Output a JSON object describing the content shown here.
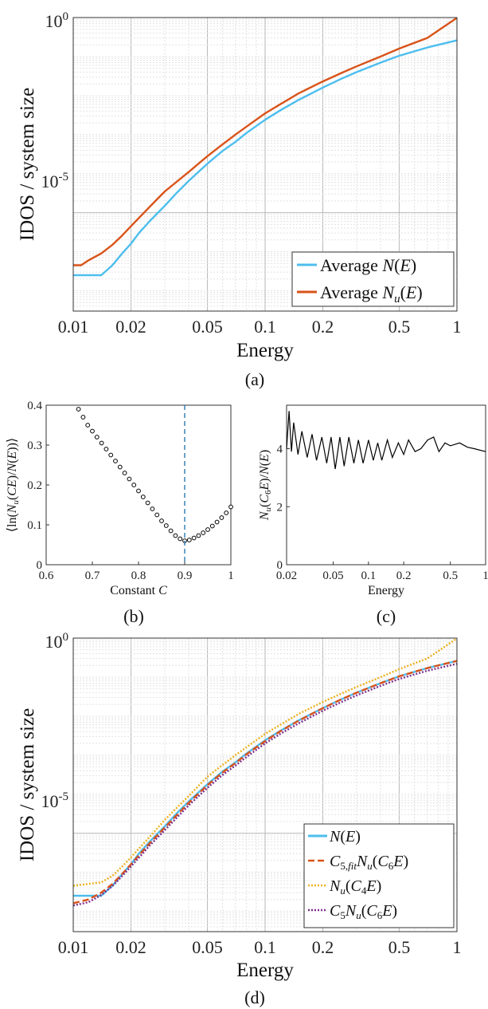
{
  "colors": {
    "blue": "#4DBEEE",
    "red": "#D95319",
    "yellow": "#EDB120",
    "purple": "#7E2F8E",
    "dashed_vline": "#2a7ab0"
  },
  "chart_data": [
    {
      "id": "a",
      "type": "line",
      "caption": "(a)",
      "xlabel": "Energy",
      "ylabel": "IDOS / system size",
      "xscale": "log",
      "yscale": "log",
      "xlim": [
        0.01,
        1
      ],
      "ylim": [
        3e-08,
        1
      ],
      "x_ticks": [
        "0.01",
        "0.02",
        "0.05",
        "0.1",
        "0.2",
        "0.5",
        "1"
      ],
      "y_ticks": [
        {
          "base": "10",
          "exp": "-5"
        },
        {
          "base": "10",
          "exp": "0"
        }
      ],
      "grid": true,
      "legend_position": "bottom-right",
      "series": [
        {
          "name": "Average N(E)",
          "color": "#4DBEEE",
          "x": [
            0.01,
            0.014,
            0.016,
            0.018,
            0.02,
            0.022,
            0.025,
            0.03,
            0.035,
            0.04,
            0.05,
            0.06,
            0.07,
            0.08,
            0.1,
            0.12,
            0.15,
            0.2,
            0.25,
            0.3,
            0.4,
            0.5,
            0.7,
            1.0
          ],
          "y": [
            2.5e-07,
            2.5e-07,
            4.5e-07,
            9e-07,
            1.6e-06,
            3e-06,
            6e-06,
            1.5e-05,
            3.4e-05,
            6.5e-05,
            0.00018,
            0.00038,
            0.00065,
            0.0011,
            0.0024,
            0.0042,
            0.0078,
            0.016,
            0.027,
            0.04,
            0.07,
            0.105,
            0.17,
            0.26
          ]
        },
        {
          "name": "Average N_u(E)",
          "color": "#D95319",
          "x": [
            0.01,
            0.011,
            0.012,
            0.014,
            0.016,
            0.018,
            0.02,
            0.025,
            0.03,
            0.04,
            0.05,
            0.06,
            0.07,
            0.08,
            0.1,
            0.12,
            0.15,
            0.2,
            0.25,
            0.3,
            0.4,
            0.5,
            0.7,
            1.0
          ],
          "y": [
            4.5e-07,
            4.5e-07,
            6e-07,
            9e-07,
            1.5e-06,
            2.6e-06,
            4.5e-06,
            1.4e-05,
            3.5e-05,
            0.00011,
            0.00028,
            0.00056,
            0.001,
            0.0016,
            0.0035,
            0.006,
            0.0115,
            0.023,
            0.038,
            0.056,
            0.1,
            0.16,
            0.3,
            0.98
          ]
        }
      ],
      "legend": [
        {
          "text": "Average ",
          "math": "N(E)",
          "color": "#4DBEEE",
          "style": "solid"
        },
        {
          "text": "Average ",
          "math": "N_u(E)",
          "color": "#D95319",
          "style": "solid"
        }
      ]
    },
    {
      "id": "b",
      "type": "scatter",
      "caption": "(b)",
      "xlabel": "Constant C",
      "ylabel": "⟨ln(N_u(CE)/N(E))⟩",
      "xlim": [
        0.6,
        1.0
      ],
      "ylim": [
        0,
        0.4
      ],
      "x_ticks": [
        "0.6",
        "0.7",
        "0.8",
        "0.9",
        "1"
      ],
      "y_ticks": [
        "0",
        "0.1",
        "0.2",
        "0.3",
        "0.4"
      ],
      "grid": false,
      "vline": 0.9,
      "x": [
        0.67,
        0.68,
        0.69,
        0.7,
        0.71,
        0.72,
        0.73,
        0.74,
        0.75,
        0.76,
        0.77,
        0.78,
        0.79,
        0.8,
        0.81,
        0.82,
        0.83,
        0.84,
        0.85,
        0.86,
        0.87,
        0.88,
        0.89,
        0.9,
        0.91,
        0.92,
        0.93,
        0.94,
        0.95,
        0.96,
        0.97,
        0.98,
        0.99,
        1.0
      ],
      "y": [
        0.39,
        0.37,
        0.35,
        0.335,
        0.32,
        0.305,
        0.29,
        0.275,
        0.26,
        0.245,
        0.23,
        0.215,
        0.2,
        0.185,
        0.17,
        0.155,
        0.14,
        0.125,
        0.11,
        0.098,
        0.085,
        0.073,
        0.065,
        0.06,
        0.062,
        0.067,
        0.073,
        0.08,
        0.088,
        0.097,
        0.107,
        0.118,
        0.13,
        0.145
      ]
    },
    {
      "id": "c",
      "type": "line",
      "caption": "(c)",
      "xlabel": "Energy",
      "ylabel": "N_u(C_6E)/N(E)",
      "xscale": "log",
      "xlim": [
        0.02,
        1.0
      ],
      "ylim": [
        0,
        5.5
      ],
      "x_ticks": [
        "0.02",
        "0.05",
        "0.1",
        "0.2",
        "0.5",
        "1"
      ],
      "y_ticks": [
        "0",
        "2",
        "4"
      ],
      "grid": false,
      "series": [
        {
          "name": "",
          "color": "#000000",
          "x": [
            0.02,
            0.021,
            0.022,
            0.023,
            0.025,
            0.027,
            0.03,
            0.033,
            0.036,
            0.04,
            0.044,
            0.048,
            0.052,
            0.057,
            0.062,
            0.068,
            0.075,
            0.082,
            0.09,
            0.1,
            0.11,
            0.12,
            0.13,
            0.145,
            0.16,
            0.18,
            0.2,
            0.22,
            0.25,
            0.28,
            0.32,
            0.36,
            0.4,
            0.45,
            0.5,
            0.6,
            0.7,
            0.8,
            1.0
          ],
          "y": [
            4.0,
            5.3,
            3.9,
            4.9,
            3.8,
            4.6,
            3.7,
            4.5,
            3.6,
            4.4,
            3.5,
            4.4,
            3.3,
            4.4,
            3.4,
            4.4,
            3.5,
            4.3,
            3.5,
            4.3,
            3.6,
            4.2,
            3.6,
            4.3,
            3.7,
            4.2,
            3.8,
            4.3,
            3.9,
            4.0,
            4.3,
            4.4,
            3.9,
            4.2,
            4.1,
            4.2,
            4.05,
            4.0,
            3.9
          ]
        }
      ]
    },
    {
      "id": "d",
      "type": "line",
      "caption": "(d)",
      "xlabel": "Energy",
      "ylabel": "IDOS / system size",
      "xscale": "log",
      "yscale": "log",
      "xlim": [
        0.01,
        1
      ],
      "ylim": [
        3e-08,
        1
      ],
      "x_ticks": [
        "0.01",
        "0.02",
        "0.05",
        "0.1",
        "0.2",
        "0.5",
        "1"
      ],
      "y_ticks": [
        {
          "base": "10",
          "exp": "-5"
        },
        {
          "base": "10",
          "exp": "0"
        }
      ],
      "grid": true,
      "legend_position": "bottom-right",
      "series": [
        {
          "name": "N(E)",
          "color": "#4DBEEE",
          "x": [
            0.01,
            0.014,
            0.016,
            0.018,
            0.02,
            0.022,
            0.025,
            0.03,
            0.035,
            0.04,
            0.05,
            0.06,
            0.07,
            0.08,
            0.1,
            0.12,
            0.15,
            0.2,
            0.25,
            0.3,
            0.4,
            0.5,
            0.7,
            1.0
          ],
          "y": [
            2.5e-07,
            2.5e-07,
            4.5e-07,
            9e-07,
            1.6e-06,
            3e-06,
            6e-06,
            1.5e-05,
            3.4e-05,
            6.5e-05,
            0.00018,
            0.00038,
            0.00065,
            0.0011,
            0.0024,
            0.0042,
            0.0078,
            0.016,
            0.027,
            0.04,
            0.07,
            0.105,
            0.17,
            0.26
          ]
        },
        {
          "name": "C_{5,fit} N_u(C_6E)",
          "color": "#D95319",
          "x": [
            0.01,
            0.012,
            0.014,
            0.016,
            0.018,
            0.02,
            0.025,
            0.03,
            0.04,
            0.05,
            0.06,
            0.07,
            0.08,
            0.1,
            0.12,
            0.15,
            0.2,
            0.25,
            0.3,
            0.4,
            0.5,
            0.7,
            1.0
          ],
          "y": [
            1.6e-07,
            2e-07,
            3e-07,
            5e-07,
            9e-07,
            1.6e-06,
            5.5e-06,
            1.4e-05,
            6e-05,
            0.00017,
            0.00036,
            0.00063,
            0.00105,
            0.0023,
            0.0041,
            0.0077,
            0.016,
            0.027,
            0.04,
            0.07,
            0.105,
            0.17,
            0.26
          ]
        },
        {
          "name": "N_u(C_4E)",
          "color": "#EDB120",
          "x": [
            0.01,
            0.012,
            0.014,
            0.016,
            0.018,
            0.02,
            0.025,
            0.03,
            0.04,
            0.05,
            0.06,
            0.07,
            0.08,
            0.1,
            0.12,
            0.15,
            0.2,
            0.25,
            0.3,
            0.4,
            0.5,
            0.7,
            1.0
          ],
          "y": [
            4.5e-07,
            5e-07,
            5.5e-07,
            8e-07,
            1.4e-06,
            2.4e-06,
            8e-06,
            2.2e-05,
            9e-05,
            0.00028,
            0.00056,
            0.001,
            0.0016,
            0.0035,
            0.006,
            0.0115,
            0.023,
            0.038,
            0.056,
            0.1,
            0.16,
            0.3,
            0.98
          ]
        },
        {
          "name": "C_5 N_u(C_6E)",
          "color": "#7E2F8E",
          "x": [
            0.01,
            0.012,
            0.014,
            0.016,
            0.018,
            0.02,
            0.025,
            0.03,
            0.04,
            0.05,
            0.06,
            0.07,
            0.08,
            0.1,
            0.12,
            0.15,
            0.2,
            0.25,
            0.3,
            0.4,
            0.5,
            0.7,
            1.0
          ],
          "y": [
            1.4e-07,
            1.7e-07,
            2.6e-07,
            4.4e-07,
            8e-07,
            1.4e-06,
            4.8e-06,
            1.2e-05,
            5.2e-05,
            0.000145,
            0.00031,
            0.00054,
            0.0009,
            0.002,
            0.0035,
            0.0066,
            0.0137,
            0.023,
            0.034,
            0.06,
            0.09,
            0.146,
            0.22
          ]
        }
      ],
      "legend": [
        {
          "text": "",
          "math": "N(E)",
          "color": "#4DBEEE",
          "style": "solid"
        },
        {
          "text": "",
          "math": "C_{5,fit}N_u(C_6E)",
          "color": "#D95319",
          "style": "dashed"
        },
        {
          "text": "",
          "math": "N_u(C_4E)",
          "color": "#EDB120",
          "style": "dotted"
        },
        {
          "text": "",
          "math": "C_5N_u(C_6E)",
          "color": "#7E2F8E",
          "style": "dotted"
        }
      ]
    }
  ]
}
